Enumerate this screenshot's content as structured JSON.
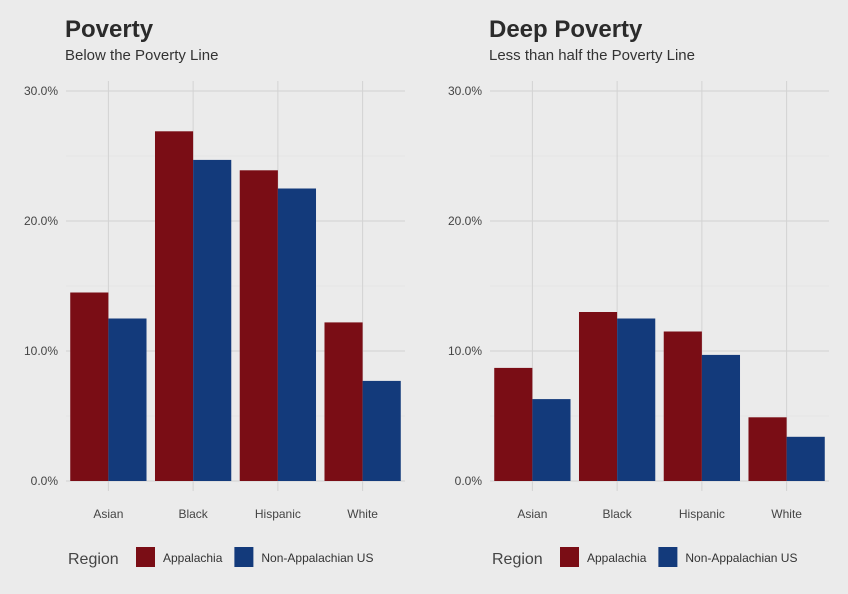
{
  "colors": {
    "Appalachia": "#7a0d15",
    "Non-Appalachian US": "#133a7b",
    "background": "#ebebeb",
    "grid": "#d2d2d2"
  },
  "chart_data": [
    {
      "type": "bar",
      "title": "Poverty",
      "subtitle": "Below the Poverty Line",
      "categories": [
        "Asian",
        "Black",
        "Hispanic",
        "White"
      ],
      "series": [
        {
          "name": "Appalachia",
          "values": [
            14.5,
            26.9,
            23.9,
            12.2
          ]
        },
        {
          "name": "Non-Appalachian US",
          "values": [
            12.5,
            24.7,
            22.5,
            7.7
          ]
        }
      ],
      "ylim": [
        0,
        30
      ],
      "yticks": [
        "0.0%",
        "10.0%",
        "20.0%",
        "30.0%"
      ],
      "grid": true,
      "legend": {
        "title": "Region",
        "position": "bottom"
      }
    },
    {
      "type": "bar",
      "title": "Deep Poverty",
      "subtitle": "Less than half the Poverty Line",
      "categories": [
        "Asian",
        "Black",
        "Hispanic",
        "White"
      ],
      "series": [
        {
          "name": "Appalachia",
          "values": [
            8.7,
            13.0,
            11.5,
            4.9
          ]
        },
        {
          "name": "Non-Appalachian US",
          "values": [
            6.3,
            12.5,
            9.7,
            3.4
          ]
        }
      ],
      "ylim": [
        0,
        30
      ],
      "yticks": [
        "0.0%",
        "10.0%",
        "20.0%",
        "30.0%"
      ],
      "grid": true,
      "legend": {
        "title": "Region",
        "position": "bottom"
      }
    }
  ]
}
